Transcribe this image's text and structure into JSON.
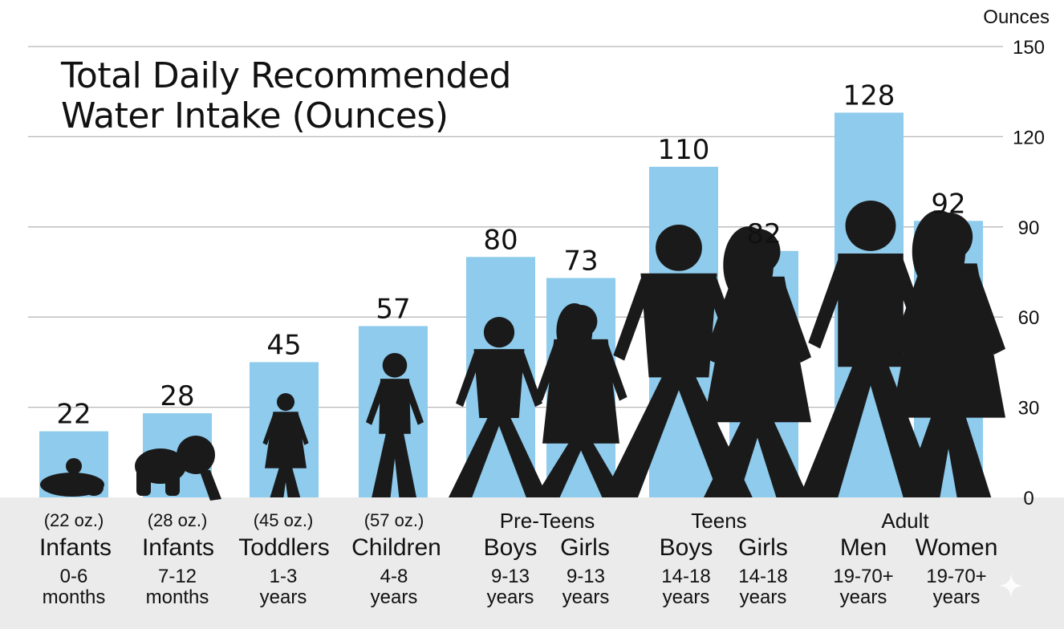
{
  "chart_data": {
    "type": "bar",
    "title_lines": [
      "Total Daily Recommended",
      "Water Intake (Ounces)"
    ],
    "y_unit": "Ounces",
    "ylim": [
      0,
      150
    ],
    "yticks": [
      0,
      30,
      60,
      90,
      120,
      150
    ],
    "grid": true,
    "bar_color": "#8ecbec",
    "categories": [
      {
        "oz": "(22 oz.)",
        "name": "Infants",
        "age1": "0-6",
        "age2": "months"
      },
      {
        "oz": "(28 oz.)",
        "name": "Infants",
        "age1": "7-12",
        "age2": "months"
      },
      {
        "oz": "(45 oz.)",
        "name": "Toddlers",
        "age1": "1-3",
        "age2": "years"
      },
      {
        "oz": "(57 oz.)",
        "name": "Children",
        "age1": "4-8",
        "age2": "years"
      },
      {
        "oz": "",
        "name": "Boys",
        "age1": "9-13",
        "age2": "years"
      },
      {
        "oz": "",
        "name": "Girls",
        "age1": "9-13",
        "age2": "years"
      },
      {
        "oz": "",
        "name": "Boys",
        "age1": "14-18",
        "age2": "years"
      },
      {
        "oz": "",
        "name": "Girls",
        "age1": "14-18",
        "age2": "years"
      },
      {
        "oz": "",
        "name": "Men",
        "age1": "19-70+",
        "age2": "years"
      },
      {
        "oz": "",
        "name": "Women",
        "age1": "19-70+",
        "age2": "years"
      }
    ],
    "groups": [
      "Pre-Teens",
      "Teens",
      "Adult"
    ],
    "values": [
      22,
      28,
      45,
      57,
      80,
      73,
      110,
      82,
      128,
      92
    ],
    "value_labels": [
      "22",
      "28",
      "45",
      "57",
      "80",
      "73",
      "110",
      "82",
      "128",
      "92"
    ],
    "silhouette_icons": [
      "baby-sitting-icon",
      "baby-crawling-icon",
      "toddler-icon",
      "child-icon",
      "boy-icon",
      "girl-icon",
      "teen-boy-icon",
      "teen-girl-icon",
      "man-icon",
      "woman-icon"
    ]
  }
}
